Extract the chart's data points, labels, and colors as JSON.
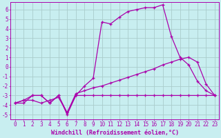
{
  "title": "",
  "xlabel": "Windchill (Refroidissement éolien,°C)",
  "ylabel": "",
  "bg_color": "#c8eef0",
  "grid_color": "#aacccc",
  "line_color": "#aa00aa",
  "xlim": [
    -0.5,
    23.5
  ],
  "ylim": [
    -5.5,
    6.8
  ],
  "xticks": [
    0,
    1,
    2,
    3,
    4,
    5,
    6,
    7,
    8,
    9,
    10,
    11,
    12,
    13,
    14,
    15,
    16,
    17,
    18,
    19,
    20,
    21,
    22,
    23
  ],
  "yticks": [
    -5,
    -4,
    -3,
    -2,
    -1,
    0,
    1,
    2,
    3,
    4,
    5,
    6
  ],
  "curve1_x": [
    0,
    1,
    2,
    3,
    4,
    5,
    6,
    7,
    8,
    9,
    10,
    11,
    12,
    13,
    14,
    15,
    16,
    17,
    18,
    19,
    20,
    21,
    22,
    23
  ],
  "curve1_y": [
    -3.8,
    -3.5,
    -3.0,
    -3.0,
    -3.8,
    -3.0,
    -4.8,
    -3.0,
    -3.0,
    -3.0,
    -3.0,
    -3.0,
    -3.0,
    -3.0,
    -3.0,
    -3.0,
    -3.0,
    -3.0,
    -3.0,
    -3.0,
    -3.0,
    -3.0,
    -3.0,
    -3.0
  ],
  "curve2_x": [
    0,
    1,
    2,
    3,
    4,
    5,
    6,
    7,
    8,
    9,
    10,
    11,
    12,
    13,
    14,
    15,
    16,
    17,
    18,
    19,
    20,
    21,
    22,
    23
  ],
  "curve2_y": [
    -3.8,
    -3.8,
    -3.0,
    -3.0,
    -3.8,
    -3.0,
    -5.0,
    -3.0,
    -2.0,
    -1.2,
    4.7,
    4.5,
    5.2,
    5.8,
    6.0,
    6.2,
    6.2,
    6.5,
    3.2,
    1.0,
    0.2,
    -1.5,
    -2.5,
    -3.0
  ],
  "curve3_x": [
    0,
    1,
    2,
    3,
    4,
    5,
    6,
    7,
    8,
    9,
    10,
    11,
    12,
    13,
    14,
    15,
    16,
    17,
    18,
    19,
    20,
    21,
    22,
    23
  ],
  "curve3_y": [
    -3.8,
    -3.5,
    -3.5,
    -3.8,
    -3.5,
    -3.2,
    -4.8,
    -2.8,
    -2.5,
    -2.2,
    -2.0,
    -1.7,
    -1.4,
    -1.1,
    -0.8,
    -0.5,
    -0.2,
    0.2,
    0.5,
    0.8,
    1.0,
    0.5,
    -1.8,
    -3.0
  ],
  "marker": "+",
  "markersize": 3,
  "linewidth": 0.9,
  "xlabel_fontsize": 6,
  "tick_fontsize": 5.5
}
